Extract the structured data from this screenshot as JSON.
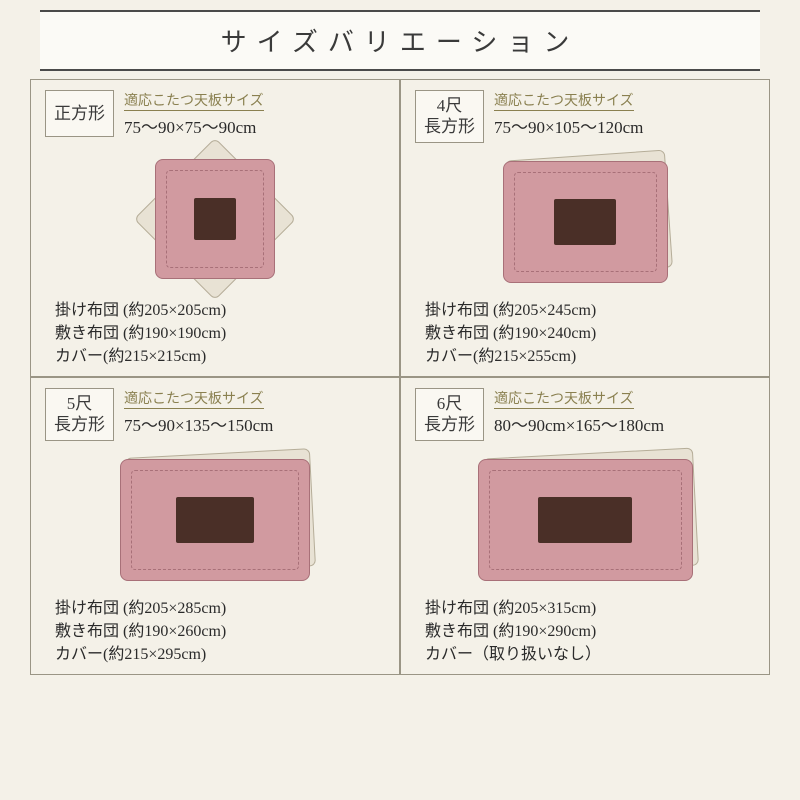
{
  "title": "サイズバリエーション",
  "colors": {
    "background": "#f4f1e8",
    "border": "#9a9585",
    "futon": "#d19aa0",
    "futon_border": "#a87078",
    "under": "#e8e2d4",
    "board": "#4a2f27",
    "accent_text": "#8a8050",
    "title_rule": "#4a4a4a"
  },
  "cells": [
    {
      "shape_label": "正方形",
      "shape_single_line": true,
      "fit_label": "適応こたつ天板サイズ",
      "fit_size": "75～90×75～90cm",
      "diagram_class": "sq",
      "specs": [
        "掛け布団 (約205×205cm)",
        "敷き布団 (約190×190cm)",
        "カバー(約215×215cm)"
      ]
    },
    {
      "shape_label": "4尺\n長方形",
      "shape_single_line": false,
      "fit_label": "適応こたつ天板サイズ",
      "fit_size": "75～90×105～120cm",
      "diagram_class": "r4",
      "specs": [
        "掛け布団 (約205×245cm)",
        "敷き布団 (約190×240cm)",
        "カバー(約215×255cm)"
      ]
    },
    {
      "shape_label": "5尺\n長方形",
      "shape_single_line": false,
      "fit_label": "適応こたつ天板サイズ",
      "fit_size": "75～90×135～150cm",
      "diagram_class": "r5",
      "specs": [
        "掛け布団 (約205×285cm)",
        "敷き布団 (約190×260cm)",
        "カバー(約215×295cm)"
      ]
    },
    {
      "shape_label": "6尺\n長方形",
      "shape_single_line": false,
      "fit_label": "適応こたつ天板サイズ",
      "fit_size": "80～90cm×165～180cm",
      "diagram_class": "r6",
      "specs": [
        "掛け布団 (約205×315cm)",
        "敷き布団 (約190×290cm)",
        "カバー（取り扱いなし）"
      ]
    }
  ]
}
